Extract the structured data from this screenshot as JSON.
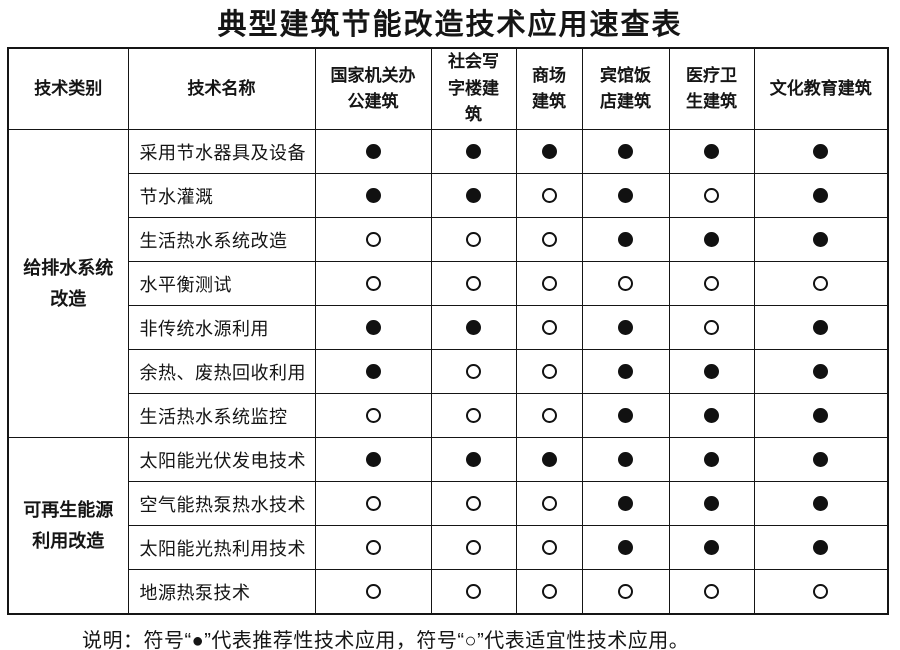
{
  "page": {
    "title": "典型建筑节能改造技术应用速查表",
    "footnote": "说明：符号“●”代表推荐性技术应用，符号“○”代表适宜性技术应用。"
  },
  "legend": {
    "filled_symbol": "●",
    "filled_meaning": "代表推荐性技术应用",
    "open_symbol": "○",
    "open_meaning": "代表适宜性技术应用"
  },
  "table": {
    "category_header": "技术类别",
    "name_header": "技术名称",
    "building_columns": [
      "国家机关办公建筑",
      "社会写字楼建筑",
      "商场建筑",
      "宾馆饭店建筑",
      "医疗卫生建筑",
      "文化教育建筑"
    ],
    "groups": [
      {
        "category": "给排水系统改造",
        "rows": [
          {
            "name": "采用节水器具及设备",
            "marks": [
              "●",
              "●",
              "●",
              "●",
              "●",
              "●"
            ]
          },
          {
            "name": "节水灌溉",
            "marks": [
              "●",
              "●",
              "○",
              "●",
              "○",
              "●"
            ]
          },
          {
            "name": "生活热水系统改造",
            "marks": [
              "○",
              "○",
              "○",
              "●",
              "●",
              "●"
            ]
          },
          {
            "name": "水平衡测试",
            "marks": [
              "○",
              "○",
              "○",
              "○",
              "○",
              "○"
            ]
          },
          {
            "name": "非传统水源利用",
            "marks": [
              "●",
              "●",
              "○",
              "●",
              "○",
              "●"
            ]
          },
          {
            "name": "余热、废热回收利用",
            "marks": [
              "●",
              "○",
              "○",
              "●",
              "●",
              "●"
            ]
          },
          {
            "name": "生活热水系统监控",
            "marks": [
              "○",
              "○",
              "○",
              "●",
              "●",
              "●"
            ]
          }
        ]
      },
      {
        "category": "可再生能源利用改造",
        "rows": [
          {
            "name": "太阳能光伏发电技术",
            "marks": [
              "●",
              "●",
              "●",
              "●",
              "●",
              "●"
            ]
          },
          {
            "name": "空气能热泵热水技术",
            "marks": [
              "○",
              "○",
              "○",
              "●",
              "●",
              "●"
            ]
          },
          {
            "name": "太阳能光热利用技术",
            "marks": [
              "○",
              "○",
              "○",
              "●",
              "●",
              "●"
            ]
          },
          {
            "name": "地源热泵技术",
            "marks": [
              "○",
              "○",
              "○",
              "○",
              "○",
              "○"
            ]
          }
        ]
      }
    ]
  },
  "colors": {
    "text": "#151515",
    "border": "#151515",
    "background": "#ffffff",
    "filled_mark": "#111111"
  }
}
